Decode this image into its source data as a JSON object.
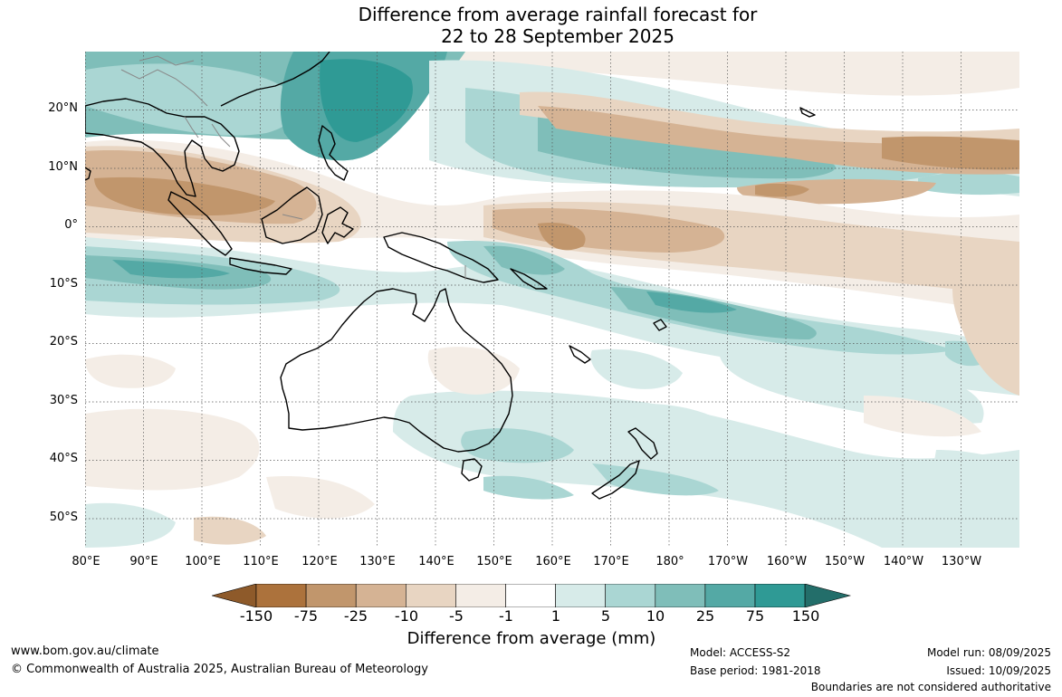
{
  "title_line1": "Difference from average rainfall forecast for",
  "title_line2": "22 to 28 September 2025",
  "lat_labels": [
    "20°N",
    "10°N",
    "0°",
    "10°S",
    "20°S",
    "30°S",
    "40°S",
    "50°S"
  ],
  "lon_labels": [
    "80°E",
    "90°E",
    "100°E",
    "110°E",
    "120°E",
    "130°E",
    "140°E",
    "150°E",
    "160°E",
    "170°E",
    "180°",
    "170°W",
    "160°W",
    "150°W",
    "140°W",
    "130°W"
  ],
  "colorbar": {
    "title": "Difference from average (mm)",
    "ticks": [
      "-150",
      "-75",
      "-25",
      "-10",
      "-5",
      "-1",
      "1",
      "5",
      "10",
      "25",
      "75",
      "150"
    ],
    "colors": [
      "#8e5a2a",
      "#ac723c",
      "#c1966c",
      "#d5b394",
      "#e8d5c2",
      "#f4ede6",
      "#ffffff",
      "#d7ebe9",
      "#aad6d3",
      "#7fbeb9",
      "#54a9a5",
      "#2f9a95",
      "#236e6a"
    ]
  },
  "footer": {
    "website": "www.bom.gov.au/climate",
    "copyright": "© Commonwealth of Australia 2025, Australian Bureau of Meteorology",
    "model": "Model: ACCESS-S2",
    "base_period": "Base period: 1981-2018",
    "model_run": "Model run: 08/09/2025",
    "issued": "Issued: 10/09/2025",
    "disclaimer": "Boundaries are not considered authoritative"
  }
}
